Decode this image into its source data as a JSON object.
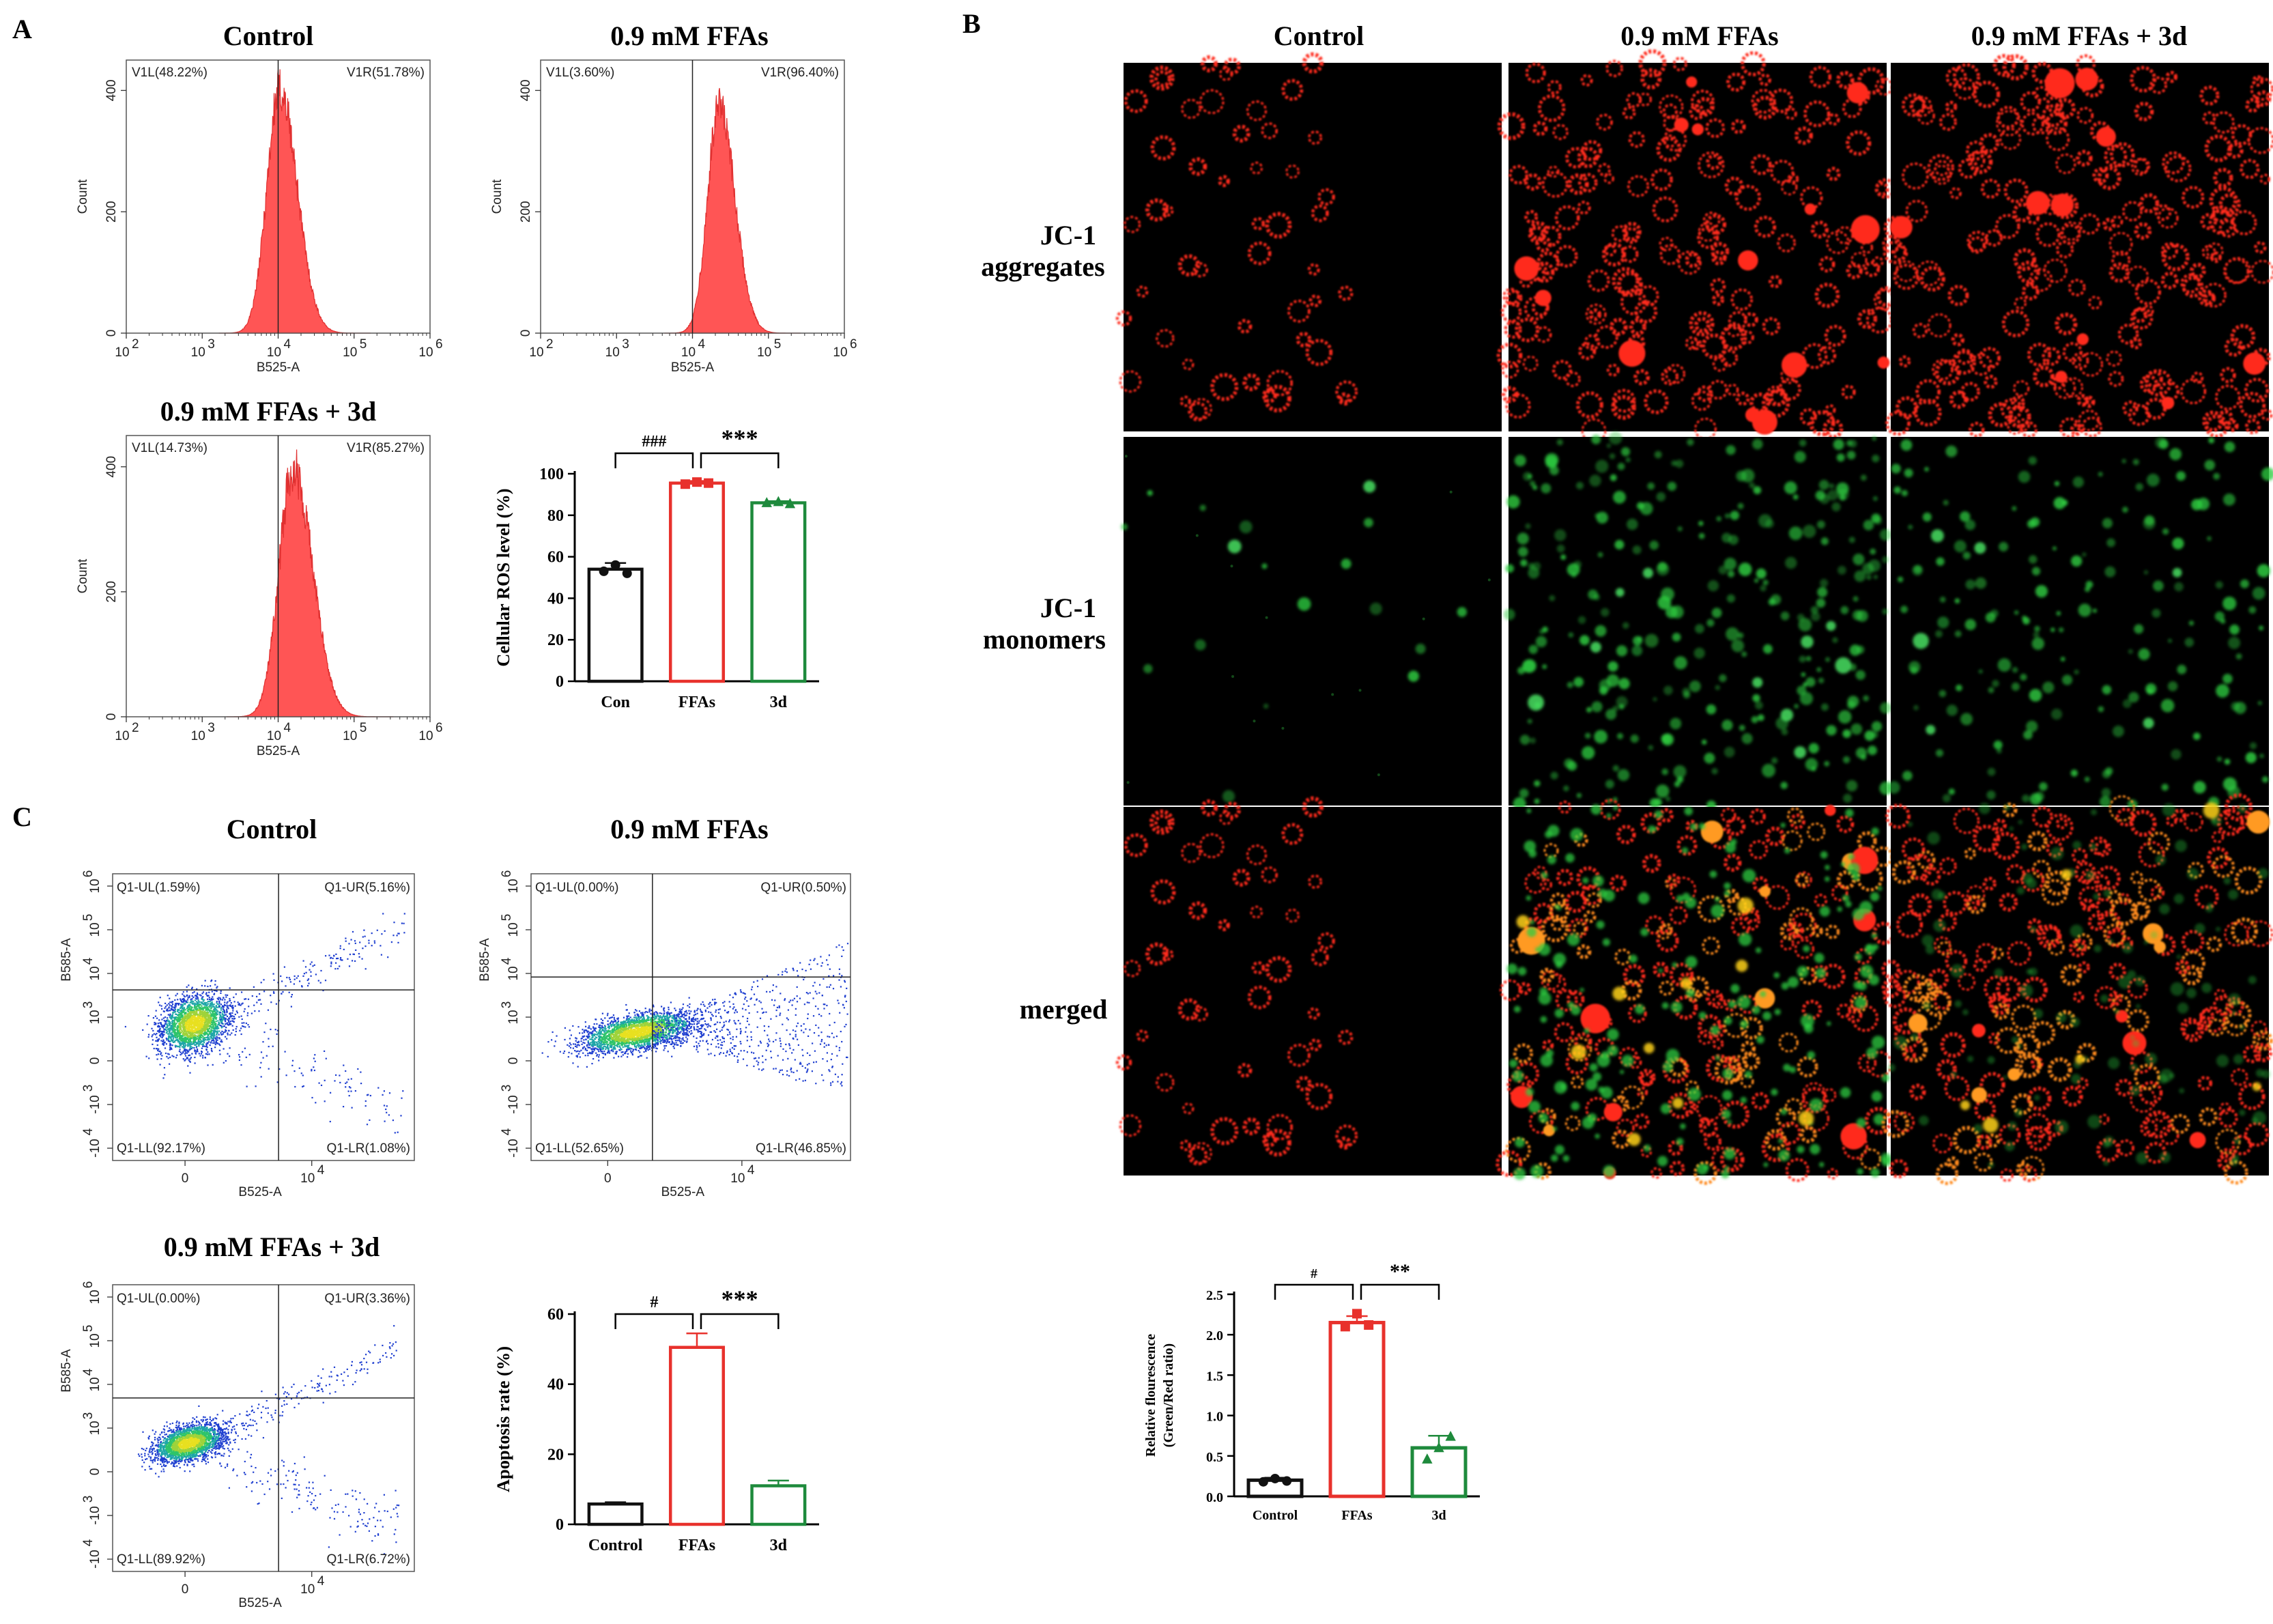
{
  "figure": {
    "panel_letters": [
      "A",
      "B",
      "C"
    ],
    "hdr_control": "Control",
    "hdr_ffa": "0.9 mM FFAs",
    "hdr_3d": "0.9 mM FFAs + 3d"
  },
  "panel_b": {
    "col_titles": [
      "Control",
      "0.9 mM FFAs",
      "0.9 mM FFAs + 3d"
    ],
    "rows": [
      {
        "line1": "JC-1",
        "line2": "aggregates",
        "channel": "red"
      },
      {
        "line1": "JC-1",
        "line2": "monomers",
        "channel": "green"
      },
      {
        "line1": "merged",
        "line2": "",
        "channel": "merged"
      }
    ],
    "colors": {
      "red": "#ff2a1a",
      "green": "#2ecc40",
      "yellow": "#ffd21a",
      "background": "#000000"
    }
  },
  "chart_data": [
    {
      "type": "histogram",
      "panel": "A",
      "title": "Control",
      "xlabel": "B525-A",
      "ylabel": "Count",
      "xticks": [
        "10",
        "10",
        "10",
        "10",
        "10"
      ],
      "xtick_exp": [
        "2",
        "3",
        "4",
        "5",
        "6"
      ],
      "yticks": [
        "0",
        "200",
        "400"
      ],
      "ylim": [
        0,
        450
      ],
      "gates": [
        {
          "label": "V1L(48.22%)"
        },
        {
          "label": "V1R(51.78%)"
        }
      ],
      "gate_x_log": 4.0,
      "peak_log": 4.02,
      "width_log": 0.2,
      "peak_count": 400,
      "color": "#ff5555"
    },
    {
      "type": "histogram",
      "panel": "A",
      "title": "0.9 mM FFAs",
      "xlabel": "B525-A",
      "ylabel": "Count",
      "xticks": [
        "10",
        "10",
        "10",
        "10",
        "10"
      ],
      "xtick_exp": [
        "2",
        "3",
        "4",
        "5",
        "6"
      ],
      "yticks": [
        "0",
        "200",
        "400"
      ],
      "ylim": [
        0,
        450
      ],
      "gates": [
        {
          "label": "V1L(3.60%)"
        },
        {
          "label": "V1R(96.40%)"
        }
      ],
      "gate_x_log": 4.0,
      "peak_log": 4.35,
      "width_log": 0.18,
      "peak_count": 370,
      "color": "#ff5555"
    },
    {
      "type": "histogram",
      "panel": "A",
      "title": "0.9 mM FFAs + 3d",
      "xlabel": "B525-A",
      "ylabel": "Count",
      "xticks": [
        "10",
        "10",
        "10",
        "10",
        "10"
      ],
      "xtick_exp": [
        "2",
        "3",
        "4",
        "5",
        "6"
      ],
      "yticks": [
        "0",
        "200",
        "400"
      ],
      "ylim": [
        0,
        450
      ],
      "gates": [
        {
          "label": "V1L(14.73%)"
        },
        {
          "label": "V1R(85.27%)"
        }
      ],
      "gate_x_log": 4.0,
      "peak_log": 4.2,
      "width_log": 0.22,
      "peak_count": 400,
      "color": "#ff5555"
    },
    {
      "type": "bar",
      "panel": "A",
      "categories": [
        "Con",
        "FFAs",
        "3d"
      ],
      "values": [
        54,
        95.5,
        86
      ],
      "errors": [
        3,
        1,
        0.8
      ],
      "points": [
        [
          53,
          56,
          52
        ],
        [
          95,
          96,
          95.5
        ],
        [
          86,
          86.5,
          85.5
        ]
      ],
      "ylabel": "Cellular ROS level (%)",
      "ylim": [
        0,
        100
      ],
      "yticks": [
        "0",
        "20",
        "40",
        "60",
        "80",
        "100"
      ],
      "colors": [
        "#111111",
        "#e8312c",
        "#1e8a3c"
      ],
      "significance": [
        "###",
        "***"
      ]
    },
    {
      "type": "scatter",
      "panel": "C",
      "title": "Control",
      "xlabel": "B525-A",
      "ylabel": "B585-A",
      "quadrants": {
        "UL": "Q1-UL(1.59%)",
        "UR": "Q1-UR(5.16%)",
        "LL": "Q1-LL(92.17%)",
        "LR": "Q1-LR(1.08%)"
      }
    },
    {
      "type": "scatter",
      "panel": "C",
      "title": "0.9 mM FFAs",
      "xlabel": "B525-A",
      "ylabel": "B585-A",
      "quadrants": {
        "UL": "Q1-UL(0.00%)",
        "UR": "Q1-UR(0.50%)",
        "LL": "Q1-LL(52.65%)",
        "LR": "Q1-LR(46.85%)"
      }
    },
    {
      "type": "scatter",
      "panel": "C",
      "title": "0.9 mM FFAs + 3d",
      "xlabel": "B525-A",
      "ylabel": "B585-A",
      "quadrants": {
        "UL": "Q1-UL(0.00%)",
        "UR": "Q1-UR(3.36%)",
        "LL": "Q1-LL(89.92%)",
        "LR": "Q1-LR(6.72%)"
      }
    },
    {
      "type": "bar",
      "panel": "C",
      "categories": [
        "Control",
        "FFAs",
        "3d"
      ],
      "values": [
        5.8,
        50.5,
        11
      ],
      "errors": [
        0.5,
        4,
        1.5
      ],
      "ylabel": "Apoptosis rate (%)",
      "ylim": [
        0,
        60
      ],
      "yticks": [
        "0",
        "20",
        "40",
        "60"
      ],
      "colors": [
        "#111111",
        "#e8312c",
        "#1e8a3c"
      ],
      "significance": [
        "#",
        "***"
      ]
    },
    {
      "type": "bar",
      "panel": "B",
      "categories": [
        "Control",
        "FFAs",
        "3d"
      ],
      "values": [
        0.2,
        2.15,
        0.6
      ],
      "errors": [
        0.03,
        0.08,
        0.15
      ],
      "points": [
        [
          0.18,
          0.22,
          0.19
        ],
        [
          2.1,
          2.26,
          2.12
        ],
        [
          0.46,
          0.6,
          0.74
        ]
      ],
      "ylabel_line1": "Relative flourescence",
      "ylabel_line2": "(Green/Red ratio)",
      "ylim": [
        0,
        2.5
      ],
      "yticks": [
        "0.0",
        "0.5",
        "1.0",
        "1.5",
        "2.0",
        "2.5"
      ],
      "colors": [
        "#111111",
        "#e8312c",
        "#1e8a3c"
      ],
      "significance": [
        "#",
        "**"
      ]
    }
  ]
}
